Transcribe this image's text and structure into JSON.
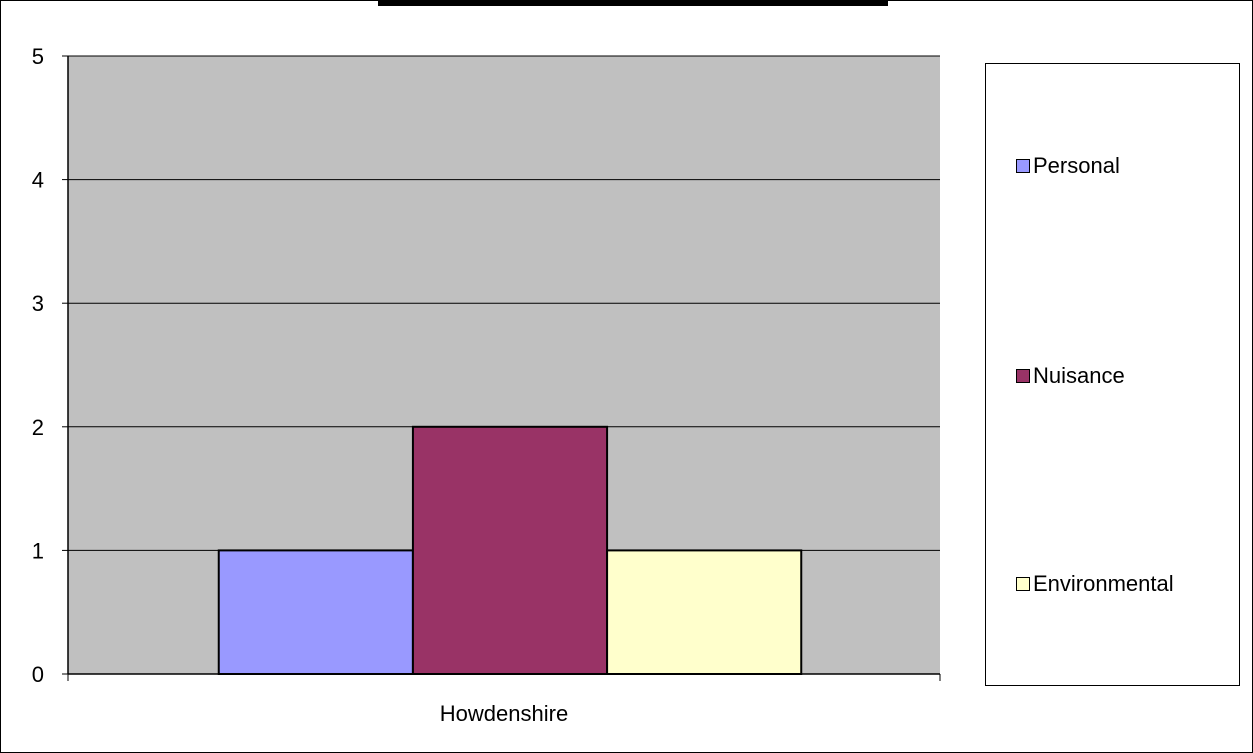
{
  "chart_data": {
    "type": "bar",
    "title": "",
    "xlabel": "",
    "ylabel": "",
    "categories": [
      "Howdenshire"
    ],
    "series": [
      {
        "name": "Personal",
        "values": [
          1
        ],
        "color": "#9999ff"
      },
      {
        "name": "Nuisance",
        "values": [
          2
        ],
        "color": "#993366"
      },
      {
        "name": "Environmental",
        "values": [
          1
        ],
        "color": "#ffffcc"
      }
    ],
    "ylim": [
      0,
      5
    ],
    "yticks": [
      "0",
      "1",
      "2",
      "3",
      "4",
      "5"
    ],
    "grid": true,
    "plot_background": "#c0c0c0",
    "legend_position": "right"
  }
}
